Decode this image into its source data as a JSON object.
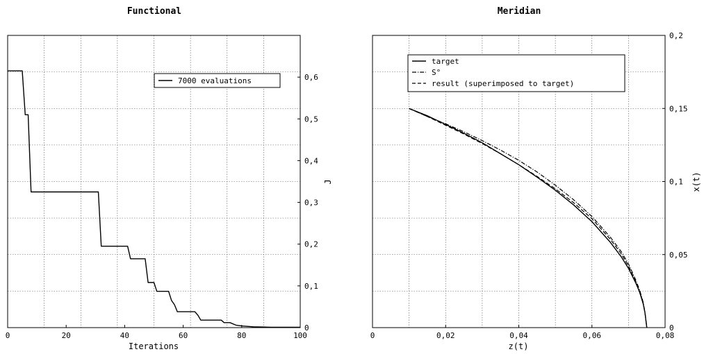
{
  "chart_data": [
    {
      "type": "line",
      "title": "Functional",
      "xlabel": "Iterations",
      "ylabel": "J",
      "xlim": [
        0,
        100
      ],
      "ylim": [
        0,
        0.7
      ],
      "x_ticks": [
        0,
        20,
        40,
        60,
        80,
        100
      ],
      "x_tick_labels": [
        "0",
        "20",
        "40",
        "60",
        "80",
        "100"
      ],
      "y_ticks": [
        0,
        0.1,
        0.2,
        0.3,
        0.4,
        0.5,
        0.6
      ],
      "y_tick_labels": [
        "0",
        "0,1",
        "0,2",
        "0,3",
        "0,4",
        "0,5",
        "0,6"
      ],
      "y_axis_side": "right",
      "grid": true,
      "legend_position": "top-right",
      "series": [
        {
          "name": "7000 evaluations",
          "style": "solid",
          "color": "#000000",
          "x": [
            0,
            5,
            6,
            6.5,
            7,
            8,
            30,
            31,
            32,
            38,
            41,
            42,
            44,
            47,
            48,
            49,
            50,
            51,
            52,
            55,
            56,
            57,
            58,
            62,
            64,
            65,
            66,
            70,
            73,
            74,
            76,
            78,
            80,
            84,
            90,
            100
          ],
          "y": [
            0.615,
            0.615,
            0.51,
            0.51,
            0.51,
            0.325,
            0.325,
            0.325,
            0.195,
            0.195,
            0.195,
            0.165,
            0.165,
            0.165,
            0.108,
            0.108,
            0.108,
            0.087,
            0.087,
            0.087,
            0.065,
            0.055,
            0.038,
            0.038,
            0.038,
            0.03,
            0.018,
            0.018,
            0.018,
            0.012,
            0.012,
            0.006,
            0.004,
            0.002,
            0.001,
            0.001
          ]
        }
      ]
    },
    {
      "type": "line",
      "title": "Meridian",
      "xlabel": "z(t)",
      "ylabel": "x(t)",
      "xlim": [
        0,
        0.08
      ],
      "ylim": [
        0,
        0.2
      ],
      "x_ticks": [
        0,
        0.02,
        0.04,
        0.06,
        0.08
      ],
      "x_tick_labels": [
        "0",
        "0,02",
        "0,04",
        "0,06",
        "0,08"
      ],
      "y_ticks": [
        0,
        0.05,
        0.1,
        0.15,
        0.2
      ],
      "y_tick_labels": [
        "0",
        "0,05",
        "0,1",
        "0,15",
        "0,2"
      ],
      "y_axis_side": "right",
      "grid": true,
      "legend_position": "top-left",
      "series": [
        {
          "name": "target",
          "style": "solid",
          "color": "#000000",
          "x": [
            0.01,
            0.015,
            0.02,
            0.025,
            0.03,
            0.035,
            0.04,
            0.045,
            0.05,
            0.055,
            0.06,
            0.065,
            0.068,
            0.07,
            0.072,
            0.073,
            0.074,
            0.0745,
            0.075
          ],
          "y": [
            0.15,
            0.145,
            0.139,
            0.133,
            0.1265,
            0.119,
            0.1115,
            0.103,
            0.094,
            0.084,
            0.0725,
            0.0585,
            0.0485,
            0.0405,
            0.0305,
            0.0245,
            0.0165,
            0.01,
            0
          ]
        },
        {
          "name": "S°",
          "style": "dashdot",
          "color": "#000000",
          "x": [
            0.01,
            0.015,
            0.02,
            0.025,
            0.03,
            0.035,
            0.04,
            0.045,
            0.05,
            0.055,
            0.06,
            0.065,
            0.068,
            0.07,
            0.072,
            0.073,
            0.074,
            0.0745,
            0.075
          ],
          "y": [
            0.15,
            0.1445,
            0.1395,
            0.134,
            0.128,
            0.1215,
            0.1145,
            0.1065,
            0.0975,
            0.0875,
            0.076,
            0.062,
            0.052,
            0.0435,
            0.0325,
            0.026,
            0.0175,
            0.0105,
            0
          ]
        },
        {
          "name": "result (superimposed to target)",
          "style": "dashed",
          "color": "#000000",
          "x": [
            0.01,
            0.015,
            0.02,
            0.025,
            0.03,
            0.035,
            0.04,
            0.045,
            0.05,
            0.055,
            0.06,
            0.065,
            0.068,
            0.07,
            0.072,
            0.073,
            0.074,
            0.0745,
            0.075
          ],
          "y": [
            0.15,
            0.1445,
            0.1385,
            0.1325,
            0.126,
            0.119,
            0.1115,
            0.1035,
            0.095,
            0.0855,
            0.0745,
            0.0605,
            0.0505,
            0.042,
            0.0315,
            0.025,
            0.017,
            0.0102,
            0
          ]
        }
      ]
    }
  ]
}
